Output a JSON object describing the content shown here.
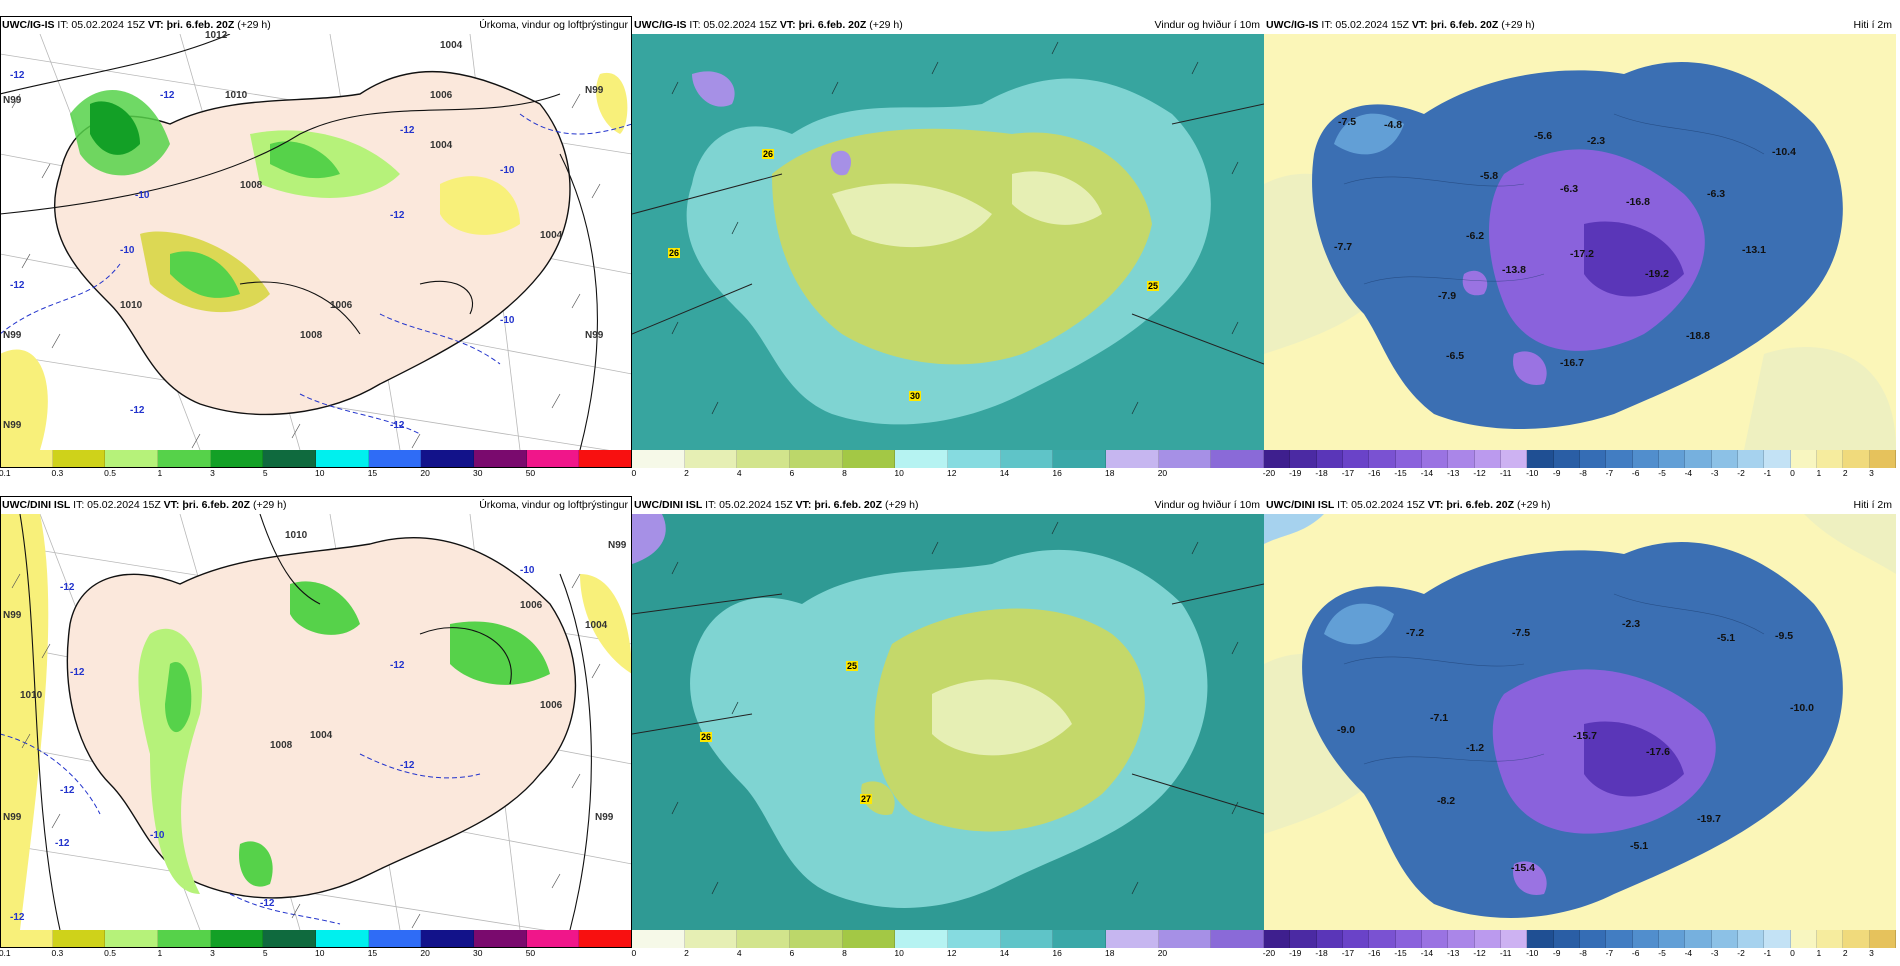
{
  "colors": {
    "ocean_precip": "#ffffff",
    "land_precip": "#fbe8dc",
    "ocean_wind": "#3fb0a8",
    "ocean_wind_light": "#7fd4d2",
    "land_wind": "#c4d86a",
    "ocean_temp": "#fbf6b8",
    "land_temp": "#3b6fb3",
    "temp_cold": "#8a5ad6"
  },
  "header_common": {
    "it": "IT: 05.02.2024 15Z",
    "vt": "VT: þri. 6.feb. 20Z",
    "lead": "(+29 h)"
  },
  "rows": [
    {
      "model": "UWC/IG-IS",
      "panels": {
        "precip": {
          "title": "Úrkoma, vindur og loftþrýstingur"
        },
        "wind": {
          "title": "Vindur og hviður í 10m"
        },
        "temp": {
          "title": "Hiti í 2m"
        }
      }
    },
    {
      "model": "UWC/DINI ISL",
      "panels": {
        "precip": {
          "title": "Úrkoma, vindur og loftþrýstingur"
        },
        "wind": {
          "title": "Vindur og hviður í 10m"
        },
        "temp": {
          "title": "Hiti í 2m"
        }
      }
    }
  ],
  "scales": {
    "precip": {
      "labels": [
        "0.1",
        "0.3",
        "0.5",
        "1",
        "3",
        "5",
        "10",
        "15",
        "20",
        "30",
        "50"
      ],
      "colors": [
        "#f8f07a",
        "#cfd21a",
        "#b6f27a",
        "#56d24a",
        "#13a026",
        "#0f6a3e",
        "#00f0ee",
        "#2f6cf6",
        "#12128a",
        "#7a0a6e",
        "#f0168a",
        "#f81010"
      ]
    },
    "wind": {
      "labels": [
        "0",
        "2",
        "4",
        "6",
        "8",
        "10",
        "12",
        "14",
        "16",
        "18",
        "20"
      ],
      "colors": [
        "#f6f9e8",
        "#e6efb4",
        "#d2e48c",
        "#bcd76a",
        "#a3c845",
        "#b6f3f2",
        "#86dbe0",
        "#5fc4c8",
        "#3aa8a8",
        "#c6b6f0",
        "#a690e6",
        "#8a6ad8"
      ]
    },
    "temp": {
      "labels": [
        "-20",
        "-19",
        "-18",
        "-17",
        "-16",
        "-15",
        "-14",
        "-13",
        "-12",
        "-11",
        "-10",
        "-9",
        "-8",
        "-7",
        "-6",
        "-5",
        "-4",
        "-3",
        "-2",
        "-1",
        "0",
        "1",
        "2",
        "3"
      ],
      "colors": [
        "#3e1f8e",
        "#4b2aa3",
        "#5a36b8",
        "#6a43c8",
        "#7a52d2",
        "#8a62dc",
        "#9a73e2",
        "#aa86e8",
        "#bb9aee",
        "#cdb2f2",
        "#1f4f93",
        "#2a5ea5",
        "#356db5",
        "#427dc2",
        "#518ecd",
        "#629fd6",
        "#76b0de",
        "#8cc1e6",
        "#a6d2ee",
        "#c3e2f5",
        "#f8f6c0",
        "#f6ec9e",
        "#f0da7c",
        "#e6c25c"
      ]
    }
  },
  "map_labels": {
    "ig_precip": {
      "isobars": [
        "1012",
        "1010",
        "1008",
        "1006",
        "1004",
        "1010",
        "1008",
        "1004",
        "1006",
        "1004"
      ],
      "temps": [
        "-12",
        "-10",
        "-10",
        "-12",
        "-12",
        "-12",
        "-12",
        "-10",
        "-10",
        "-12",
        "-12"
      ],
      "graticule": [
        "N99",
        "N99",
        "N99",
        "N99",
        "N99"
      ]
    },
    "ig_wind": {
      "gusts": [
        "26",
        "26",
        "25",
        "30"
      ]
    },
    "ig_temp": {
      "values": [
        "-7.5",
        "-4.8",
        "-5.6",
        "-2.3",
        "-10.4",
        "-5.8",
        "-6.3",
        "-16.8",
        "-6.3",
        "-6.2",
        "-7.7",
        "-17.2",
        "-13.1",
        "-13.8",
        "-19.2",
        "-7.9",
        "-18.8",
        "-6.5",
        "-16.7"
      ]
    },
    "dini_precip": {
      "isobars": [
        "1010",
        "1008",
        "1006",
        "1004",
        "1010",
        "1006",
        "1004"
      ],
      "temps": [
        "-10",
        "-12",
        "-12",
        "-12",
        "-12",
        "-10",
        "-12",
        "-12",
        "-12",
        "-12"
      ],
      "graticule": [
        "N99",
        "N99",
        "N99",
        "N99"
      ]
    },
    "dini_wind": {
      "gusts": [
        "25",
        "26",
        "27"
      ]
    },
    "dini_temp": {
      "values": [
        "-7.2",
        "-7.5",
        "-2.3",
        "-5.1",
        "-9.5",
        "-7.1",
        "-9.0",
        "-10.0",
        "-1.2",
        "-15.7",
        "-17.6",
        "-8.2",
        "-19.7",
        "-5.1",
        "-15.4"
      ]
    }
  }
}
